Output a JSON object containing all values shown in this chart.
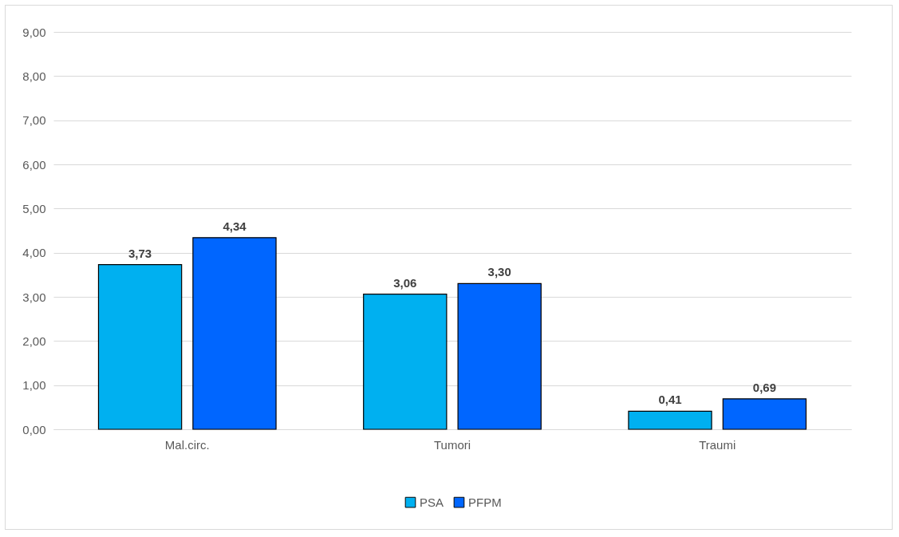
{
  "chart_data": {
    "type": "bar",
    "categories": [
      "Mal.circ.",
      "Tumori",
      "Traumi"
    ],
    "series": [
      {
        "name": "PSA",
        "color": "#00b0f0",
        "values": [
          3.73,
          3.06,
          0.41
        ],
        "value_labels": [
          "3,73",
          "3,06",
          "0,41"
        ]
      },
      {
        "name": "PFPM",
        "color": "#0066ff",
        "values": [
          4.34,
          3.3,
          0.69
        ],
        "value_labels": [
          "4,34",
          "3,30",
          "0,69"
        ]
      }
    ],
    "ylim": [
      0,
      9
    ],
    "yticks": [
      {
        "value": 0,
        "label": "0,00"
      },
      {
        "value": 1,
        "label": "1,00"
      },
      {
        "value": 2,
        "label": "2,00"
      },
      {
        "value": 3,
        "label": "3,00"
      },
      {
        "value": 4,
        "label": "4,00"
      },
      {
        "value": 5,
        "label": "5,00"
      },
      {
        "value": 6,
        "label": "6,00"
      },
      {
        "value": 7,
        "label": "7,00"
      },
      {
        "value": 8,
        "label": "8,00"
      },
      {
        "value": 9,
        "label": "9,00"
      }
    ],
    "grid": "y",
    "legend": "bottom"
  }
}
